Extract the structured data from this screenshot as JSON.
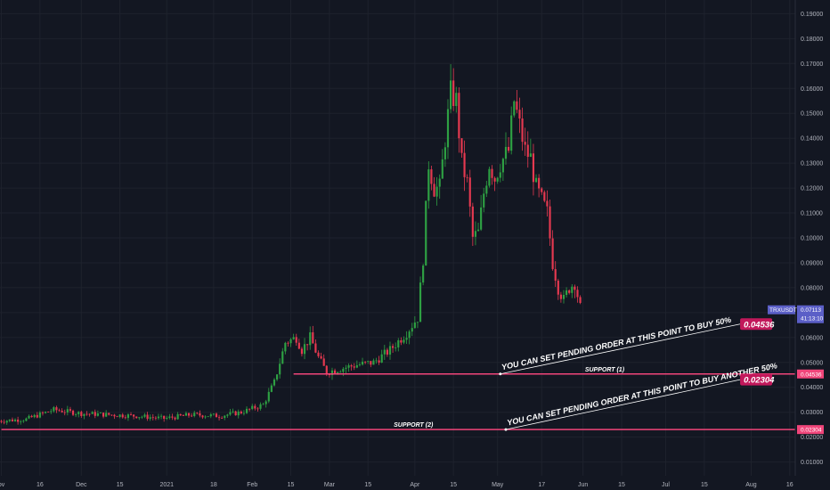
{
  "colors": {
    "background": "#131722",
    "grid": "#1e222d",
    "up": "#26a69a",
    "up_candle": "#2ea043",
    "down": "#e53950",
    "support": "#f0457a",
    "tag_bg": "#c2185b",
    "ticker_bg": "#5b5fc7"
  },
  "chart_data": {
    "type": "candlestick",
    "symbol": "TRXUSDT",
    "last_price": "0.07113",
    "countdown": "41:13:10",
    "y_ticks": [
      "0.19000",
      "0.18000",
      "0.17000",
      "0.16000",
      "0.15000",
      "0.14000",
      "0.13000",
      "0.12000",
      "0.11000",
      "0.10000",
      "0.09000",
      "0.08000",
      "0.07000",
      "0.06000",
      "0.05000",
      "0.04000",
      "0.03000",
      "0.02000",
      "0.01000"
    ],
    "ylim": [
      0.0045,
      0.1955
    ],
    "x_ticks": [
      "ov",
      "16",
      "Dec",
      "15",
      "2021",
      "18",
      "Feb",
      "15",
      "Mar",
      "15",
      "Apr",
      "15",
      "May",
      "17",
      "Jun",
      "15",
      "Jul",
      "15",
      "Aug",
      "16"
    ],
    "x_tick_units": [
      1,
      15,
      30,
      44,
      61,
      78,
      92,
      106,
      120,
      134,
      151,
      165,
      181,
      197,
      212,
      226,
      242,
      256,
      273,
      287
    ],
    "xlim": [
      0.5,
      289
    ],
    "price_path": [
      [
        0,
        0.0265
      ],
      [
        10,
        0.0272
      ],
      [
        20,
        0.031
      ],
      [
        30,
        0.0295
      ],
      [
        40,
        0.029
      ],
      [
        50,
        0.0285
      ],
      [
        60,
        0.0275
      ],
      [
        70,
        0.029
      ],
      [
        80,
        0.0285
      ],
      [
        88,
        0.03
      ],
      [
        96,
        0.033
      ],
      [
        100,
        0.042
      ],
      [
        104,
        0.058
      ],
      [
        108,
        0.06
      ],
      [
        110,
        0.055
      ],
      [
        113,
        0.06
      ],
      [
        116,
        0.052
      ],
      [
        119,
        0.046
      ],
      [
        122,
        0.047
      ],
      [
        126,
        0.048
      ],
      [
        130,
        0.049
      ],
      [
        136,
        0.05
      ],
      [
        142,
        0.055
      ],
      [
        148,
        0.062
      ],
      [
        152,
        0.068
      ],
      [
        154,
        0.092
      ],
      [
        156,
        0.13
      ],
      [
        158,
        0.12
      ],
      [
        160,
        0.12
      ],
      [
        162,
        0.14
      ],
      [
        164,
        0.158
      ],
      [
        166,
        0.155
      ],
      [
        168,
        0.13
      ],
      [
        170,
        0.122
      ],
      [
        172,
        0.1
      ],
      [
        174,
        0.102
      ],
      [
        176,
        0.118
      ],
      [
        178,
        0.13
      ],
      [
        180,
        0.124
      ],
      [
        182,
        0.13
      ],
      [
        185,
        0.135
      ],
      [
        187,
        0.155
      ],
      [
        189,
        0.145
      ],
      [
        191,
        0.135
      ],
      [
        193,
        0.132
      ],
      [
        195,
        0.12
      ],
      [
        197,
        0.115
      ],
      [
        199,
        0.11
      ],
      [
        201,
        0.09
      ],
      [
        203,
        0.08
      ],
      [
        205,
        0.075
      ],
      [
        207,
        0.08
      ],
      [
        209,
        0.082
      ],
      [
        211,
        0.072
      ]
    ],
    "support_1": {
      "label": "SUPPORT (1)",
      "price": "0.04536",
      "value": 0.04536,
      "tag": "0.04536",
      "note": "YOU CAN SET PENDING ORDER AT THIS POINT TO BUY 50%",
      "x_start": 107,
      "note_x": 182,
      "tag_x": 269
    },
    "support_2": {
      "label": "SUPPORT (2)",
      "price": "0.02304",
      "value": 0.02304,
      "tag": "0.02304",
      "note": "YOU CAN SET PENDING ORDER AT THIS POINT TO BUY ANOTHER 50%",
      "x_start": 1,
      "note_x": 184,
      "tag_x": 269
    }
  }
}
